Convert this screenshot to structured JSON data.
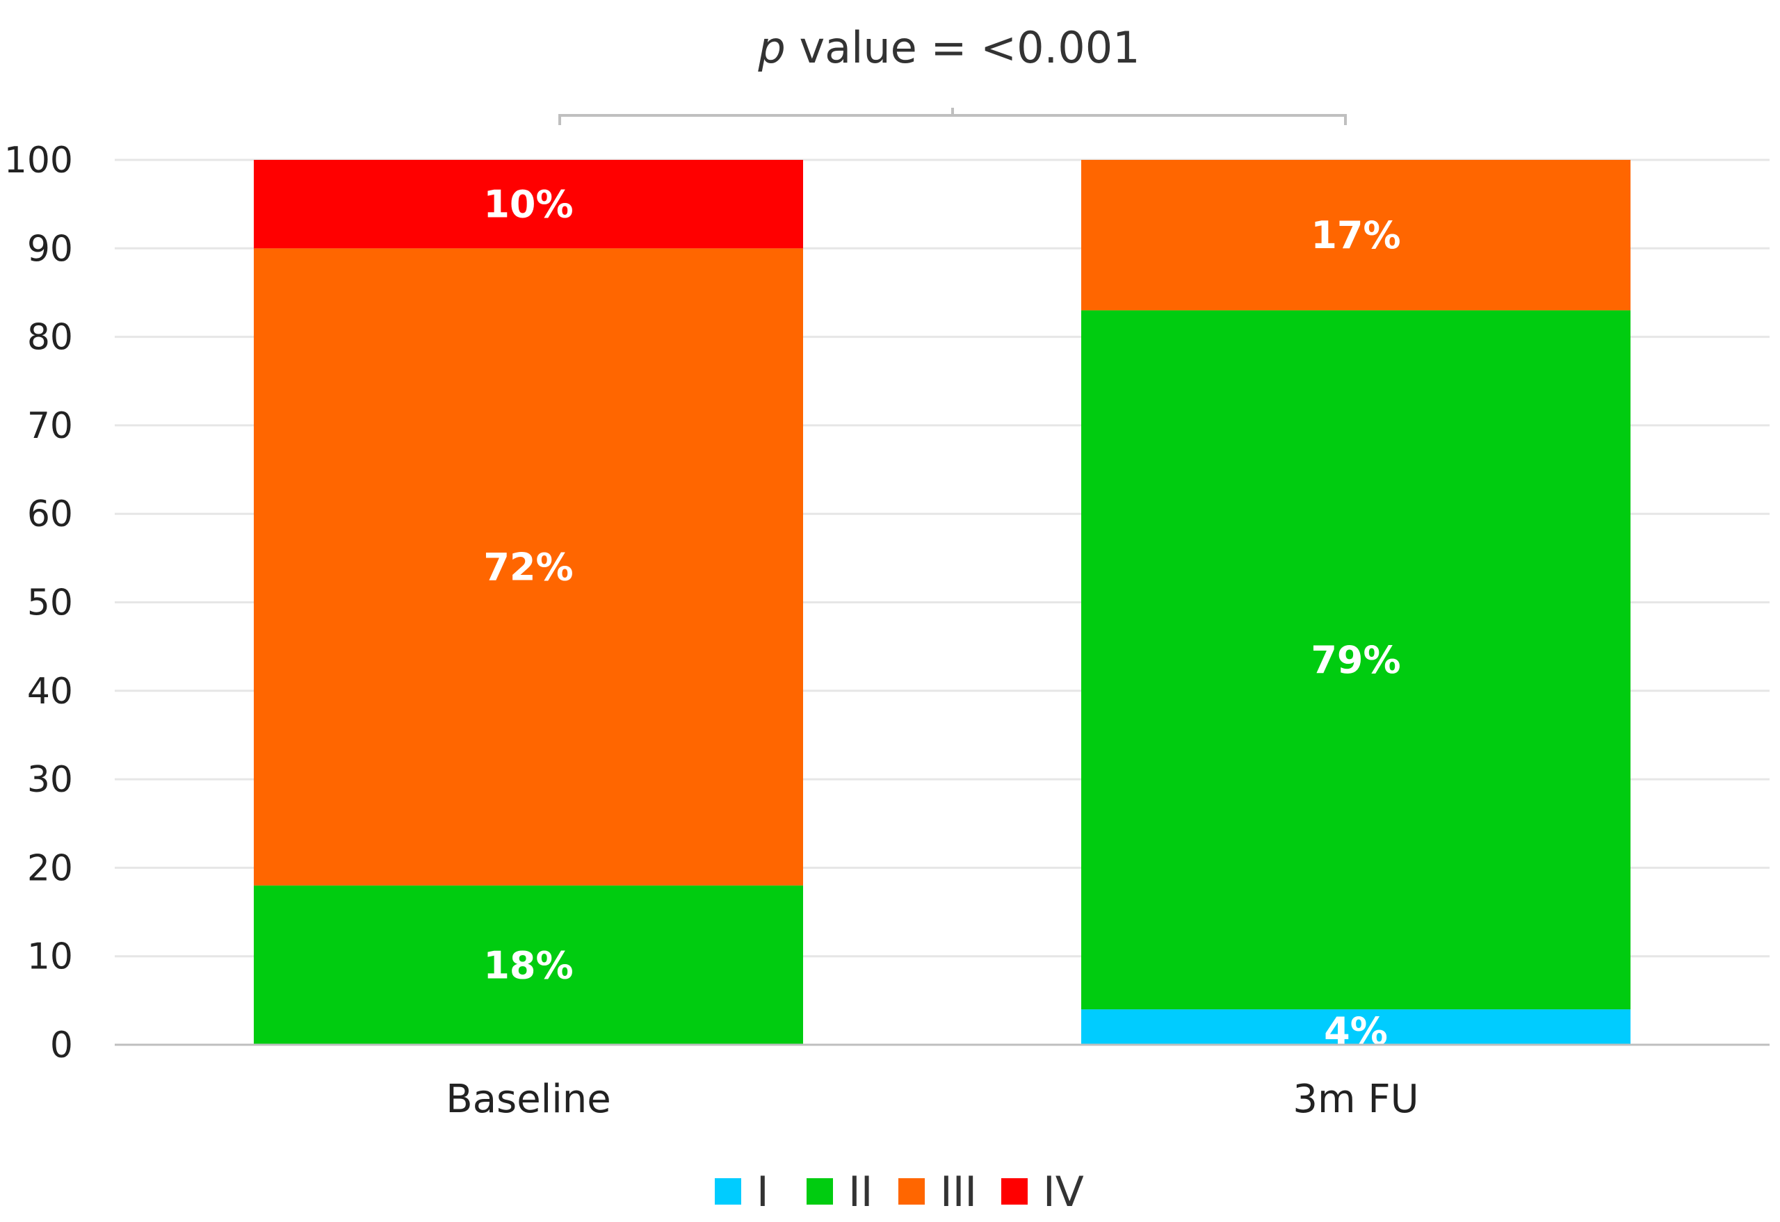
{
  "chart_data": {
    "type": "bar",
    "stacked": true,
    "categories": [
      "Baseline",
      "3m FU"
    ],
    "series": [
      {
        "name": "I",
        "color": "#00CCFF",
        "values": [
          0,
          4
        ]
      },
      {
        "name": "II",
        "color": "#00CC10",
        "values": [
          18,
          79
        ]
      },
      {
        "name": "III",
        "color": "#FF6600",
        "values": [
          72,
          17
        ]
      },
      {
        "name": "IV",
        "color": "#FF0000",
        "values": [
          10,
          0
        ]
      }
    ],
    "data_labels": [
      [
        "",
        "4%"
      ],
      [
        "18%",
        "79%"
      ],
      [
        "72%",
        "17%"
      ],
      [
        "10%",
        ""
      ]
    ],
    "ylim": [
      0,
      100
    ],
    "yticks": [
      "0",
      "10",
      "20",
      "30",
      "40",
      "50",
      "60",
      "70",
      "80",
      "90",
      "100"
    ],
    "grid": true,
    "legend_position": "bottom",
    "annotation": {
      "p_symbol": "p",
      "text": " value = <0.001"
    }
  }
}
